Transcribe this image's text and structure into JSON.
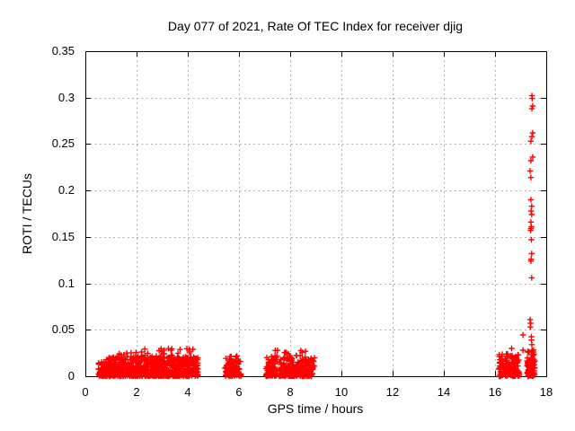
{
  "chart_data": {
    "type": "scatter",
    "title": "Day 077 of 2021, Rate Of TEC Index for receiver djig",
    "xlabel": "GPS time / hours",
    "ylabel": "ROTI / TECUs",
    "xlim": [
      0,
      18
    ],
    "ylim": [
      0,
      0.35
    ],
    "xticks": [
      0,
      2,
      4,
      6,
      8,
      10,
      12,
      14,
      16,
      18
    ],
    "xtick_labels": [
      "0",
      "2",
      "4",
      "6",
      "8",
      "10",
      "12",
      "14",
      "16",
      "18"
    ],
    "yticks": [
      0,
      0.05,
      0.1,
      0.15,
      0.2,
      0.25,
      0.3,
      0.35
    ],
    "ytick_labels": [
      "0",
      "0.05",
      "0.1",
      "0.15",
      "0.2",
      "0.25",
      "0.3",
      "0.35"
    ],
    "grid": true,
    "legend": "none",
    "marker": {
      "shape": "plus",
      "color": "#ff0000",
      "size": 7
    },
    "grid_color": "#b1b1b1",
    "border_color": "#000000",
    "background": "#ffffff",
    "clusters": [
      {
        "x0": 0.5,
        "x1": 1.0,
        "n": 70,
        "ymin": 0,
        "ymax": 0.016,
        "pow": 1.8
      },
      {
        "x0": 0.8,
        "x1": 4.4,
        "n": 700,
        "ymin": 0,
        "ymax": 0.021,
        "pow": 1.7
      },
      {
        "x0": 1.3,
        "x1": 4.3,
        "n": 45,
        "ymin": 0.018,
        "ymax": 0.03,
        "pow": 1.0
      },
      {
        "x0": 5.45,
        "x1": 6.08,
        "n": 95,
        "ymin": 0,
        "ymax": 0.022,
        "pow": 1.7
      },
      {
        "x0": 7.05,
        "x1": 7.5,
        "n": 85,
        "ymin": 0,
        "ymax": 0.022,
        "pow": 1.7
      },
      {
        "x0": 7.55,
        "x1": 8.95,
        "n": 200,
        "ymin": 0,
        "ymax": 0.02,
        "pow": 1.7
      },
      {
        "x0": 7.2,
        "x1": 8.6,
        "n": 18,
        "ymin": 0.018,
        "ymax": 0.028,
        "pow": 1.0
      },
      {
        "x0": 16.15,
        "x1": 16.95,
        "n": 130,
        "ymin": 0,
        "ymax": 0.024,
        "pow": 1.8
      },
      {
        "x0": 17.25,
        "x1": 17.55,
        "n": 100,
        "ymin": 0,
        "ymax": 0.03,
        "pow": 1.5
      }
    ],
    "spike_points": [
      [
        17.44,
        0.302
      ],
      [
        17.45,
        0.299
      ],
      [
        17.47,
        0.291
      ],
      [
        17.44,
        0.288
      ],
      [
        17.47,
        0.262
      ],
      [
        17.44,
        0.258
      ],
      [
        17.4,
        0.253
      ],
      [
        17.47,
        0.236
      ],
      [
        17.4,
        0.232
      ],
      [
        17.37,
        0.221
      ],
      [
        17.4,
        0.214
      ],
      [
        17.4,
        0.19
      ],
      [
        17.43,
        0.183
      ],
      [
        17.41,
        0.178
      ],
      [
        17.43,
        0.174
      ],
      [
        17.4,
        0.166
      ],
      [
        17.42,
        0.161
      ],
      [
        17.4,
        0.159
      ],
      [
        17.39,
        0.157
      ],
      [
        17.42,
        0.147
      ],
      [
        17.43,
        0.132
      ],
      [
        17.41,
        0.126
      ],
      [
        17.4,
        0.124
      ],
      [
        17.43,
        0.106
      ],
      [
        17.37,
        0.061
      ],
      [
        17.39,
        0.057
      ],
      [
        17.38,
        0.053
      ],
      [
        17.42,
        0.0425
      ],
      [
        17.42,
        0.039
      ],
      [
        17.44,
        0.034
      ],
      [
        17.09,
        0.0445
      ],
      [
        17.09,
        0.028
      ],
      [
        16.65,
        0.03
      ]
    ]
  }
}
